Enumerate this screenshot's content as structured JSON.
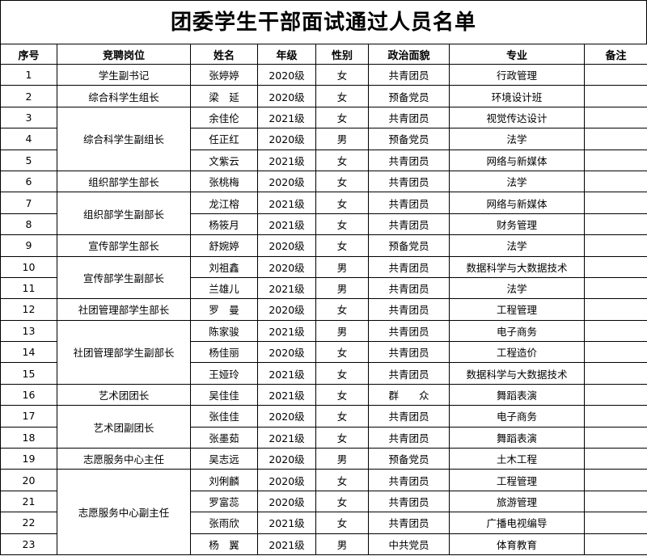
{
  "title": "团委学生干部面试通过人员名单",
  "headers": [
    "序号",
    "竞聘岗位",
    "姓名",
    "年级",
    "性别",
    "政治面貌",
    "专业",
    "备注"
  ],
  "rows": [
    {
      "no": "1",
      "position": "学生副书记",
      "name": "张婷婷",
      "grade": "2020级",
      "gender": "女",
      "political": "共青团员",
      "major": "行政管理",
      "note": ""
    },
    {
      "no": "2",
      "position": "综合科学生组长",
      "name": "梁　延",
      "grade": "2020级",
      "gender": "女",
      "political": "预备党员",
      "major": "环境设计班",
      "note": ""
    },
    {
      "no": "3",
      "position": "综合科学生副组长",
      "name": "余佳伦",
      "grade": "2021级",
      "gender": "女",
      "political": "共青团员",
      "major": "视觉传达设计",
      "note": ""
    },
    {
      "no": "4",
      "position": "综合科学生副组长",
      "name": "任正红",
      "grade": "2020级",
      "gender": "男",
      "political": "预备党员",
      "major": "法学",
      "note": ""
    },
    {
      "no": "5",
      "position": "综合科学生副组长",
      "name": "文紫云",
      "grade": "2021级",
      "gender": "女",
      "political": "共青团员",
      "major": "网络与新媒体",
      "note": ""
    },
    {
      "no": "6",
      "position": "组织部学生部长",
      "name": "张桃梅",
      "grade": "2020级",
      "gender": "女",
      "political": "共青团员",
      "major": "法学",
      "note": ""
    },
    {
      "no": "7",
      "position": "组织部学生副部长",
      "name": "龙江榕",
      "grade": "2021级",
      "gender": "女",
      "political": "共青团员",
      "major": "网络与新媒体",
      "note": ""
    },
    {
      "no": "8",
      "position": "组织部学生副部长",
      "name": "杨筱月",
      "grade": "2021级",
      "gender": "女",
      "political": "共青团员",
      "major": "财务管理",
      "note": ""
    },
    {
      "no": "9",
      "position": "宣传部学生部长",
      "name": "舒婉婷",
      "grade": "2020级",
      "gender": "女",
      "political": "预备党员",
      "major": "法学",
      "note": ""
    },
    {
      "no": "10",
      "position": "宣传部学生副部长",
      "name": "刘祖鑫",
      "grade": "2020级",
      "gender": "男",
      "political": "共青团员",
      "major": "数据科学与大数据技术",
      "note": ""
    },
    {
      "no": "11",
      "position": "宣传部学生副部长",
      "name": "兰雄儿",
      "grade": "2021级",
      "gender": "男",
      "political": "共青团员",
      "major": "法学",
      "note": ""
    },
    {
      "no": "12",
      "position": "社团管理部学生部长",
      "name": "罗　曼",
      "grade": "2020级",
      "gender": "女",
      "political": "共青团员",
      "major": "工程管理",
      "note": ""
    },
    {
      "no": "13",
      "position": "社团管理部学生副部长",
      "name": "陈家骏",
      "grade": "2021级",
      "gender": "男",
      "political": "共青团员",
      "major": "电子商务",
      "note": ""
    },
    {
      "no": "14",
      "position": "社团管理部学生副部长",
      "name": "杨佳丽",
      "grade": "2020级",
      "gender": "女",
      "political": "共青团员",
      "major": "工程造价",
      "note": ""
    },
    {
      "no": "15",
      "position": "社团管理部学生副部长",
      "name": "王娅玲",
      "grade": "2021级",
      "gender": "女",
      "political": "共青团员",
      "major": "数据科学与大数据技术",
      "note": ""
    },
    {
      "no": "16",
      "position": "艺术团团长",
      "name": "吴佳佳",
      "grade": "2021级",
      "gender": "女",
      "political": "群　　众",
      "major": "舞蹈表演",
      "note": ""
    },
    {
      "no": "17",
      "position": "艺术团副团长",
      "name": "张佳佳",
      "grade": "2020级",
      "gender": "女",
      "political": "共青团员",
      "major": "电子商务",
      "note": ""
    },
    {
      "no": "18",
      "position": "艺术团副团长",
      "name": "张墨茹",
      "grade": "2021级",
      "gender": "女",
      "political": "共青团员",
      "major": "舞蹈表演",
      "note": ""
    },
    {
      "no": "19",
      "position": "志愿服务中心主任",
      "name": "吴志远",
      "grade": "2020级",
      "gender": "男",
      "political": "预备党员",
      "major": "土木工程",
      "note": ""
    },
    {
      "no": "20",
      "position": "志愿服务中心副主任",
      "name": "刘俐麟",
      "grade": "2020级",
      "gender": "女",
      "political": "共青团员",
      "major": "工程管理",
      "note": ""
    },
    {
      "no": "21",
      "position": "志愿服务中心副主任",
      "name": "罗富蕊",
      "grade": "2020级",
      "gender": "女",
      "political": "共青团员",
      "major": "旅游管理",
      "note": ""
    },
    {
      "no": "22",
      "position": "志愿服务中心副主任",
      "name": "张雨欣",
      "grade": "2021级",
      "gender": "女",
      "political": "共青团员",
      "major": "广播电视编导",
      "note": ""
    },
    {
      "no": "23",
      "position": "志愿服务中心副主任",
      "name": "杨　翼",
      "grade": "2021级",
      "gender": "男",
      "political": "中共党员",
      "major": "体育教育",
      "note": ""
    }
  ]
}
